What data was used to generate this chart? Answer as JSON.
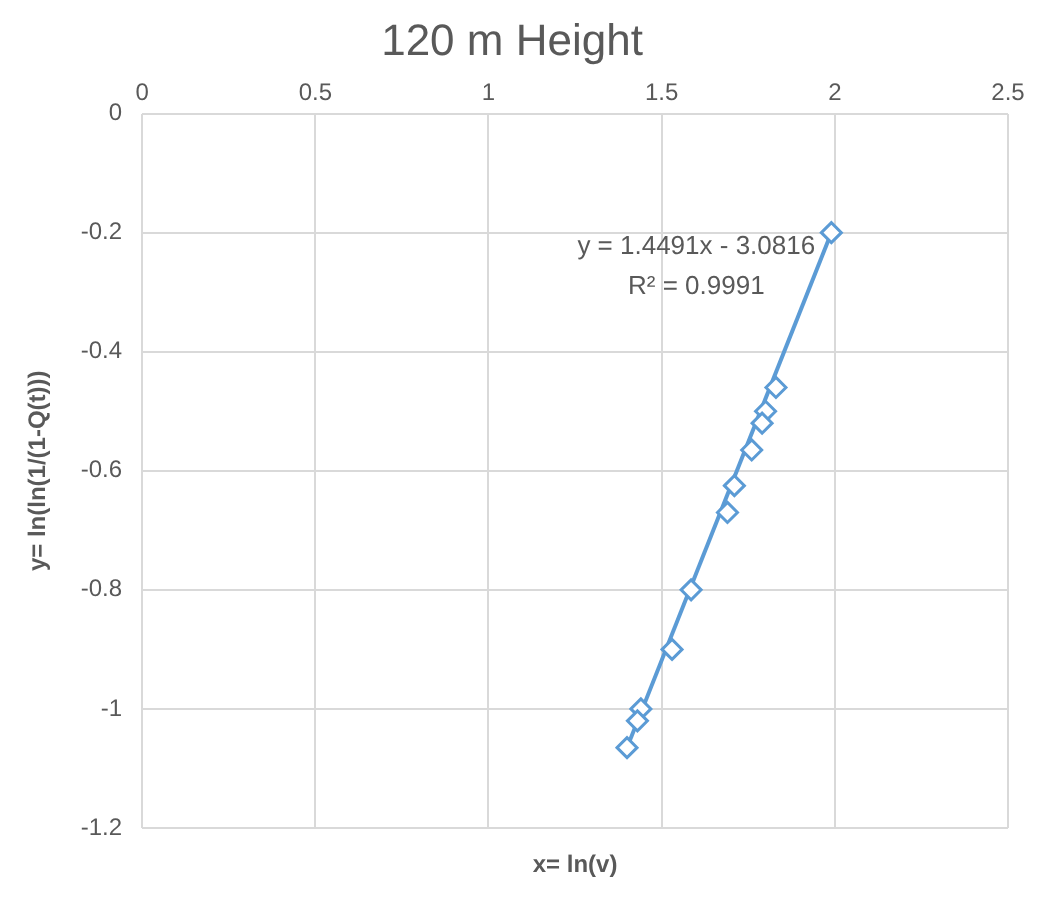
{
  "chart_data": {
    "type": "scatter",
    "title": "120 m Height",
    "xlabel": "x= ln(v)",
    "ylabel": "y= ln(ln(1/(1-Q(t)))",
    "xlim": [
      0,
      2.5
    ],
    "xticks": [
      0,
      0.5,
      1,
      1.5,
      2,
      2.5
    ],
    "ylim": [
      -1.2,
      0
    ],
    "yticks": [
      -1.2,
      -1,
      -0.8,
      -0.6,
      -0.4,
      -0.2,
      0
    ],
    "grid": true,
    "marker": "diamond",
    "series": [
      {
        "type": "scatter",
        "color": "#5b9bd5",
        "x": [
          1.99,
          1.83,
          1.8,
          1.79,
          1.76,
          1.71,
          1.69,
          1.585,
          1.53,
          1.44,
          1.43,
          1.4
        ],
        "values": [
          -0.2,
          -0.46,
          -0.5,
          -0.52,
          -0.565,
          -0.625,
          -0.67,
          -0.8,
          -0.9,
          -1.0,
          -1.02,
          -1.065
        ]
      },
      {
        "type": "line",
        "marker": "none",
        "color": "#5b9bd5",
        "x": [
          1.4,
          1.99
        ],
        "values": [
          -1.065,
          -0.2
        ]
      }
    ],
    "annotations": [
      "y = 1.4491x - 3.0816",
      "R² = 0.9991"
    ]
  }
}
